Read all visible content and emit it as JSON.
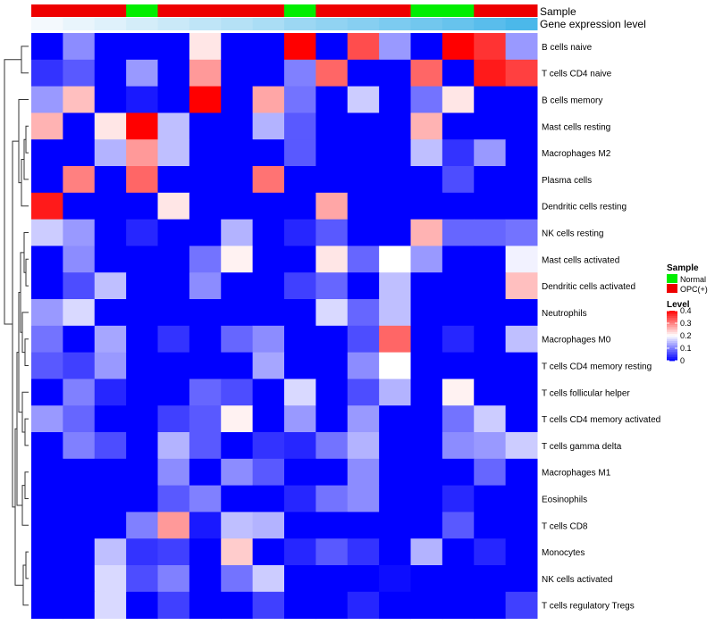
{
  "chart_data": {
    "type": "heatmap",
    "title": "",
    "annotation_labels": {
      "sample": "Sample",
      "expression": "Gene expression level"
    },
    "columns": 16,
    "sample_groups": [
      "OPC(+)",
      "OPC(+)",
      "OPC(+)",
      "Normal",
      "OPC(+)",
      "OPC(+)",
      "OPC(+)",
      "OPC(+)",
      "Normal",
      "OPC(+)",
      "OPC(+)",
      "OPC(+)",
      "Normal",
      "Normal",
      "OPC(+)",
      "OPC(+)"
    ],
    "expression_levels": [
      0.02,
      0.05,
      0.08,
      0.11,
      0.14,
      0.17,
      0.2,
      0.23,
      0.27,
      0.3,
      0.33,
      0.36,
      0.39,
      0.42,
      0.46,
      0.5
    ],
    "rows": [
      "B cells naive",
      "T cells CD4 naive",
      "B cells memory",
      "Mast cells resting",
      "Macrophages M2",
      "Plasma cells",
      "Dendritic cells resting",
      "NK cells resting",
      "Mast cells activated",
      "Dendritic cells activated",
      "Neutrophils",
      "Macrophages M0",
      "T cells CD4 memory resting",
      "T cells follicular helper",
      "T cells CD4 memory activated",
      "T cells gamma delta",
      "Macrophages M1",
      "Eosinophils",
      "T cells CD8",
      "Monocytes",
      "NK cells activated",
      "T cells regulatory  Tregs"
    ],
    "values": [
      [
        0.0,
        0.11,
        0.0,
        0.0,
        0.0,
        0.22,
        0.0,
        0.0,
        0.4,
        0.0,
        0.34,
        0.12,
        0.0,
        0.4,
        0.36,
        0.12
      ],
      [
        0.04,
        0.07,
        0.0,
        0.12,
        0.0,
        0.28,
        0.0,
        0.0,
        0.1,
        0.32,
        0.0,
        0.0,
        0.32,
        0.0,
        0.38,
        0.35
      ],
      [
        0.12,
        0.25,
        0.0,
        0.02,
        0.0,
        0.4,
        0.0,
        0.27,
        0.09,
        0.0,
        0.16,
        0.0,
        0.09,
        0.22,
        0.0,
        0.0
      ],
      [
        0.26,
        0.0,
        0.22,
        0.4,
        0.15,
        0.0,
        0.0,
        0.14,
        0.07,
        0.0,
        0.0,
        0.0,
        0.26,
        0.0,
        0.0,
        0.0
      ],
      [
        0.0,
        0.0,
        0.14,
        0.28,
        0.15,
        0.0,
        0.0,
        0.0,
        0.07,
        0.0,
        0.0,
        0.0,
        0.15,
        0.04,
        0.12,
        0.0
      ],
      [
        0.0,
        0.3,
        0.0,
        0.32,
        0.0,
        0.0,
        0.0,
        0.31,
        0.0,
        0.0,
        0.0,
        0.0,
        0.0,
        0.06,
        0.0,
        0.0
      ],
      [
        0.38,
        0.0,
        0.0,
        0.0,
        0.22,
        0.0,
        0.0,
        0.0,
        0.0,
        0.27,
        0.0,
        0.0,
        0.0,
        0.0,
        0.0,
        0.0
      ],
      [
        0.16,
        0.12,
        0.0,
        0.03,
        0.0,
        0.0,
        0.14,
        0.0,
        0.03,
        0.07,
        0.0,
        0.0,
        0.26,
        0.08,
        0.08,
        0.09
      ],
      [
        0.0,
        0.11,
        0.0,
        0.0,
        0.0,
        0.09,
        0.21,
        0.0,
        0.0,
        0.22,
        0.08,
        0.2,
        0.12,
        0.0,
        0.0,
        0.19
      ],
      [
        0.0,
        0.06,
        0.15,
        0.0,
        0.0,
        0.11,
        0.0,
        0.0,
        0.05,
        0.08,
        0.0,
        0.15,
        0.0,
        0.0,
        0.0,
        0.25
      ],
      [
        0.12,
        0.17,
        0.0,
        0.0,
        0.0,
        0.0,
        0.0,
        0.0,
        0.0,
        0.17,
        0.08,
        0.15,
        0.0,
        0.0,
        0.0,
        0.0
      ],
      [
        0.09,
        0.0,
        0.13,
        0.0,
        0.04,
        0.0,
        0.08,
        0.11,
        0.0,
        0.0,
        0.06,
        0.32,
        0.0,
        0.03,
        0.0,
        0.15
      ],
      [
        0.07,
        0.05,
        0.12,
        0.0,
        0.0,
        0.0,
        0.0,
        0.13,
        0.0,
        0.0,
        0.11,
        0.2,
        0.0,
        0.0,
        0.0,
        0.0
      ],
      [
        0.0,
        0.1,
        0.03,
        0.0,
        0.0,
        0.08,
        0.06,
        0.0,
        0.17,
        0.0,
        0.06,
        0.14,
        0.0,
        0.21,
        0.0,
        0.0
      ],
      [
        0.12,
        0.08,
        0.0,
        0.0,
        0.05,
        0.07,
        0.21,
        0.0,
        0.12,
        0.0,
        0.12,
        0.0,
        0.0,
        0.09,
        0.16,
        0.0
      ],
      [
        0.0,
        0.1,
        0.06,
        0.0,
        0.14,
        0.07,
        0.0,
        0.04,
        0.03,
        0.09,
        0.14,
        0.0,
        0.0,
        0.11,
        0.12,
        0.16
      ],
      [
        0.0,
        0.0,
        0.0,
        0.0,
        0.11,
        0.0,
        0.11,
        0.07,
        0.0,
        0.0,
        0.11,
        0.0,
        0.0,
        0.0,
        0.08,
        0.0
      ],
      [
        0.0,
        0.0,
        0.0,
        0.0,
        0.07,
        0.1,
        0.0,
        0.0,
        0.03,
        0.09,
        0.11,
        0.0,
        0.0,
        0.03,
        0.0,
        0.0
      ],
      [
        0.0,
        0.0,
        0.0,
        0.1,
        0.28,
        0.02,
        0.15,
        0.14,
        0.0,
        0.0,
        0.0,
        0.0,
        0.0,
        0.07,
        0.0,
        0.0
      ],
      [
        0.0,
        0.0,
        0.15,
        0.04,
        0.05,
        0.0,
        0.24,
        0.0,
        0.03,
        0.07,
        0.04,
        0.0,
        0.14,
        0.0,
        0.03,
        0.0
      ],
      [
        0.0,
        0.0,
        0.17,
        0.06,
        0.1,
        0.0,
        0.09,
        0.16,
        0.0,
        0.0,
        0.0,
        0.01,
        0.0,
        0.0,
        0.0,
        0.0
      ],
      [
        0.0,
        0.0,
        0.17,
        0.0,
        0.05,
        0.0,
        0.0,
        0.05,
        0.0,
        0.0,
        0.03,
        0.0,
        0.0,
        0.0,
        0.0,
        0.05
      ]
    ],
    "legend_sample": {
      "title": "Sample",
      "entries": [
        {
          "label": "Normal",
          "color": "#00ee00"
        },
        {
          "label": "OPC(+)",
          "color": "#ee0000"
        }
      ]
    },
    "legend_level": {
      "title": "Level",
      "ticks": [
        {
          "value": 0.4,
          "label": "0.4"
        },
        {
          "value": 0.3,
          "label": "0.3"
        },
        {
          "value": 0.2,
          "label": "0.2"
        },
        {
          "value": 0.1,
          "label": "0.1"
        },
        {
          "value": 0.0,
          "label": "0"
        }
      ],
      "range": [
        0,
        0.4
      ]
    },
    "colors": {
      "low": "#0000ff",
      "mid": "#ffffff",
      "high": "#ff0000",
      "expr_low": "#f4f9fd",
      "expr_high": "#4bb8ea",
      "dendrogram": "#333333"
    }
  }
}
